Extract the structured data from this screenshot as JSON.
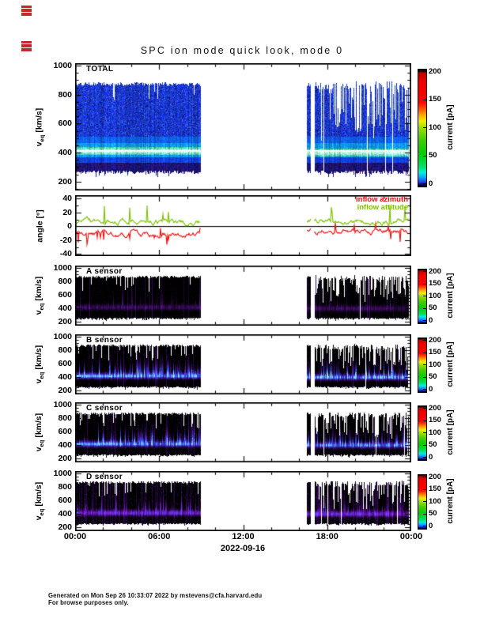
{
  "page": {
    "title": "SPC ion mode quick look, mode 0",
    "date_label": "2022-09-16",
    "footer_line1": "Generated on Mon Sep 26 10:33:07 2022 by mstevens@cfa.harvard.edu",
    "footer_line2": "For browse purposes only.",
    "annotation_marks": {
      "color": "#c62828",
      "count": 2
    }
  },
  "time_axis": {
    "tick_labels": [
      "00:00",
      "06:00",
      "12:00",
      "18:00",
      "00:00"
    ],
    "tick_hours": [
      0,
      6,
      12,
      18,
      24
    ],
    "minor_tick_interval_hours": 2,
    "range_hours": [
      0,
      24
    ],
    "data_segments_hours": [
      [
        0,
        8.95
      ],
      [
        16.54,
        16.82
      ],
      [
        17.08,
        23.8
      ]
    ]
  },
  "colorbar": {
    "label": "current [pA]",
    "tick_labels": [
      "200",
      "150",
      "100",
      "50",
      "0"
    ],
    "tick_values": [
      200,
      150,
      100,
      50,
      0
    ],
    "range_pA": [
      0,
      200
    ]
  },
  "legend": {
    "items": [
      {
        "label": "inflow azimuth",
        "color": "#ee1111"
      },
      {
        "label": "inflow attitude",
        "color": "#7dc300"
      }
    ]
  },
  "chart_data": [
    {
      "type": "heatmap",
      "id": "total",
      "label": "TOTAL",
      "ylabel": {
        "base": "v",
        "sub": "eq",
        "unit": "[km/s]"
      },
      "yticks": [
        1000,
        800,
        600,
        400,
        200
      ],
      "ytick_labels": [
        "1000",
        "800",
        "600",
        "400",
        "200"
      ],
      "ylim": [
        140,
        1016
      ],
      "yminor": 50,
      "band_center_kms": 413,
      "white_line_kms": 413,
      "band_color": "cyan-green over blue",
      "data_extent_kms": [
        255,
        885
      ],
      "current_range_pA": [
        0,
        200
      ],
      "style": "total"
    },
    {
      "type": "line",
      "id": "angle",
      "label": "",
      "ylabel": "angle [°]",
      "yticks": [
        40,
        20,
        0,
        -20,
        -40
      ],
      "ytick_labels": [
        "40",
        "20",
        "0",
        "-20",
        "-40"
      ],
      "ylim": [
        -43,
        45
      ],
      "yminor": 10,
      "zero_line_deg": 0,
      "series": [
        {
          "name": "inflow azimuth",
          "color": "#ee1111",
          "mean_deg_early": -11,
          "mean_deg_late": -6,
          "range_deg": [
            -24,
            10
          ]
        },
        {
          "name": "inflow attitude",
          "color": "#7dc300",
          "mean_deg_early": 6.5,
          "mean_deg_late": 7.5,
          "range_deg": [
            -4,
            31
          ]
        }
      ]
    },
    {
      "type": "heatmap",
      "id": "sensor_a",
      "label": "A sensor",
      "ylabel": {
        "base": "v",
        "sub": "eq",
        "unit": "[km/s]"
      },
      "yticks": [
        1000,
        800,
        600,
        400,
        200
      ],
      "ytick_labels": [
        "1000",
        "800",
        "600",
        "400",
        "200"
      ],
      "ylim": [
        141,
        1035
      ],
      "yminor": 50,
      "band_center_kms": 418,
      "band_color": "faint purple",
      "data_extent_kms": [
        250,
        885
      ],
      "current_range_pA": [
        0,
        200
      ],
      "style": "a"
    },
    {
      "type": "heatmap",
      "id": "sensor_b",
      "label": "B sensor",
      "ylabel": {
        "base": "v",
        "sub": "eq",
        "unit": "[km/s]"
      },
      "yticks": [
        1000,
        800,
        600,
        400,
        200
      ],
      "ytick_labels": [
        "1000",
        "800",
        "600",
        "400",
        "200"
      ],
      "ylim": [
        141,
        1035
      ],
      "yminor": 50,
      "band_center_kms": 418,
      "band_color": "bright blue",
      "data_extent_kms": [
        250,
        885
      ],
      "current_range_pA": [
        0,
        200
      ],
      "style": "b"
    },
    {
      "type": "heatmap",
      "id": "sensor_c",
      "label": "C sensor",
      "ylabel": {
        "base": "v",
        "sub": "eq",
        "unit": "[km/s]"
      },
      "yticks": [
        1000,
        800,
        600,
        400,
        200
      ],
      "ytick_labels": [
        "1000",
        "800",
        "600",
        "400",
        "200"
      ],
      "ylim": [
        141,
        1035
      ],
      "yminor": 50,
      "band_center_kms": 418,
      "band_color": "bright blue",
      "data_extent_kms": [
        250,
        885
      ],
      "current_range_pA": [
        0,
        200
      ],
      "style": "c"
    },
    {
      "type": "heatmap",
      "id": "sensor_d",
      "label": "D sensor",
      "ylabel": {
        "base": "v",
        "sub": "eq",
        "unit": "[km/s]"
      },
      "yticks": [
        1000,
        800,
        600,
        400,
        200
      ],
      "ytick_labels": [
        "1000",
        "800",
        "600",
        "400",
        "200"
      ],
      "ylim": [
        141,
        1035
      ],
      "yminor": 50,
      "band_center_kms": 415,
      "band_color": "purple-blue streaked",
      "data_extent_kms": [
        250,
        885
      ],
      "current_range_pA": [
        0,
        200
      ],
      "style": "d"
    }
  ]
}
